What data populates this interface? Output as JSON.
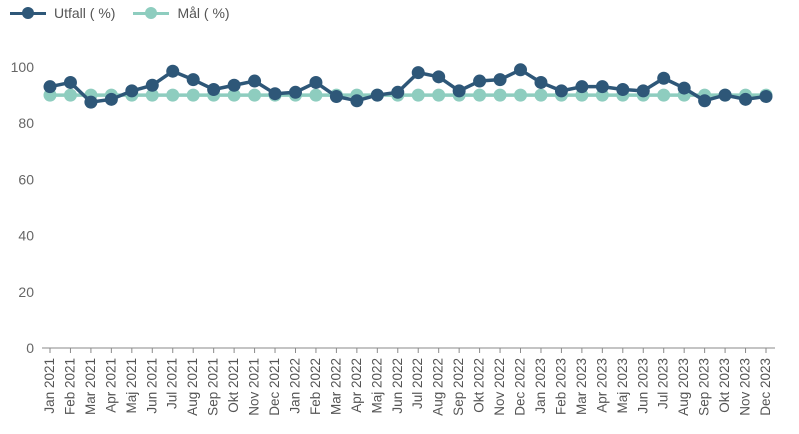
{
  "legend": {
    "series0": "Utfall ( %)",
    "series1": "Mål ( %)"
  },
  "colors": {
    "series0": "#2e5778",
    "series1": "#8ecdbf",
    "grid": "#e6e6e6",
    "axis": "#8a8a8a"
  },
  "chart_data": {
    "type": "line",
    "title": "",
    "xlabel": "",
    "ylabel": "",
    "ylim": [
      0,
      100
    ],
    "yticks": [
      0,
      20,
      40,
      60,
      80,
      100
    ],
    "grid": false,
    "legend_position": "top-left",
    "categories": [
      "Jan 2021",
      "Feb 2021",
      "Mar 2021",
      "Apr 2021",
      "Maj 2021",
      "Jun 2021",
      "Jul 2021",
      "Aug 2021",
      "Sep 2021",
      "Okt 2021",
      "Nov 2021",
      "Dec 2021",
      "Jan 2022",
      "Feb 2022",
      "Mar 2022",
      "Apr 2022",
      "Maj 2022",
      "Jun 2022",
      "Jul 2022",
      "Aug 2022",
      "Sep 2022",
      "Okt 2022",
      "Nov 2022",
      "Dec 2022",
      "Jan 2023",
      "Feb 2023",
      "Mar 2023",
      "Apr 2023",
      "Maj 2023",
      "Jun 2023",
      "Jul 2023",
      "Aug 2023",
      "Sep 2023",
      "Okt 2023",
      "Nov 2023",
      "Dec 2023"
    ],
    "series": [
      {
        "name": "Utfall ( %)",
        "values": [
          93,
          94.5,
          87.5,
          88.5,
          91.5,
          93.5,
          98.5,
          95.5,
          92,
          93.5,
          95,
          90.5,
          91,
          94.5,
          89.5,
          88,
          90,
          91,
          98,
          96.5,
          91.5,
          95,
          95.5,
          99,
          94.5,
          91.5,
          93,
          93,
          92,
          91.5,
          96,
          92.5,
          88,
          90,
          88.5,
          89.5
        ]
      },
      {
        "name": "Mål ( %)",
        "values": [
          90,
          90,
          90,
          90,
          90,
          90,
          90,
          90,
          90,
          90,
          90,
          90,
          90,
          90,
          90,
          90,
          90,
          90,
          90,
          90,
          90,
          90,
          90,
          90,
          90,
          90,
          90,
          90,
          90,
          90,
          90,
          90,
          90,
          90,
          90,
          90
        ]
      }
    ]
  }
}
